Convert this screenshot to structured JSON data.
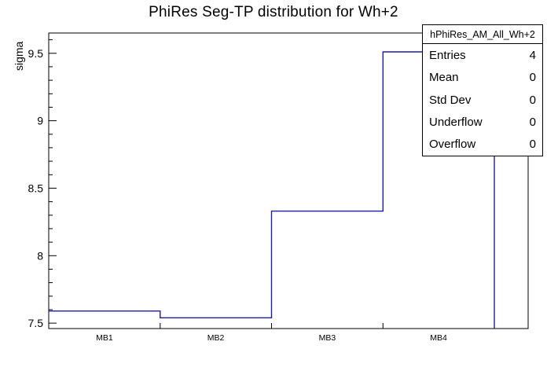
{
  "title": "PhiRes Seg-TP distribution for Wh+2",
  "y_axis": {
    "label": "sigma",
    "ticks": [
      7.5,
      8,
      8.5,
      9,
      9.5
    ]
  },
  "x_axis": {
    "labels": [
      "MB1",
      "MB2",
      "MB3",
      "MB4"
    ]
  },
  "stats_box": {
    "title": "hPhiRes_AM_All_Wh+2",
    "rows": [
      {
        "label": "Entries",
        "value": "4"
      },
      {
        "label": "Mean",
        "value": "0"
      },
      {
        "label": "Std Dev",
        "value": "0"
      },
      {
        "label": "Underflow",
        "value": "0"
      },
      {
        "label": "Overflow",
        "value": "0"
      }
    ]
  },
  "chart_data": {
    "type": "line",
    "subtype": "step-histogram",
    "title": "PhiRes Seg-TP distribution for Wh+2",
    "categories": [
      "MB1",
      "MB2",
      "MB3",
      "MB4"
    ],
    "values": [
      7.59,
      7.54,
      8.33,
      9.51
    ],
    "xlabel": "",
    "ylabel": "sigma",
    "ylim": [
      7.46,
      9.65
    ],
    "line_color": "#1c1ca8",
    "axis_color": "#000000",
    "background": "#ffffff",
    "grid": false,
    "legend": "none"
  }
}
